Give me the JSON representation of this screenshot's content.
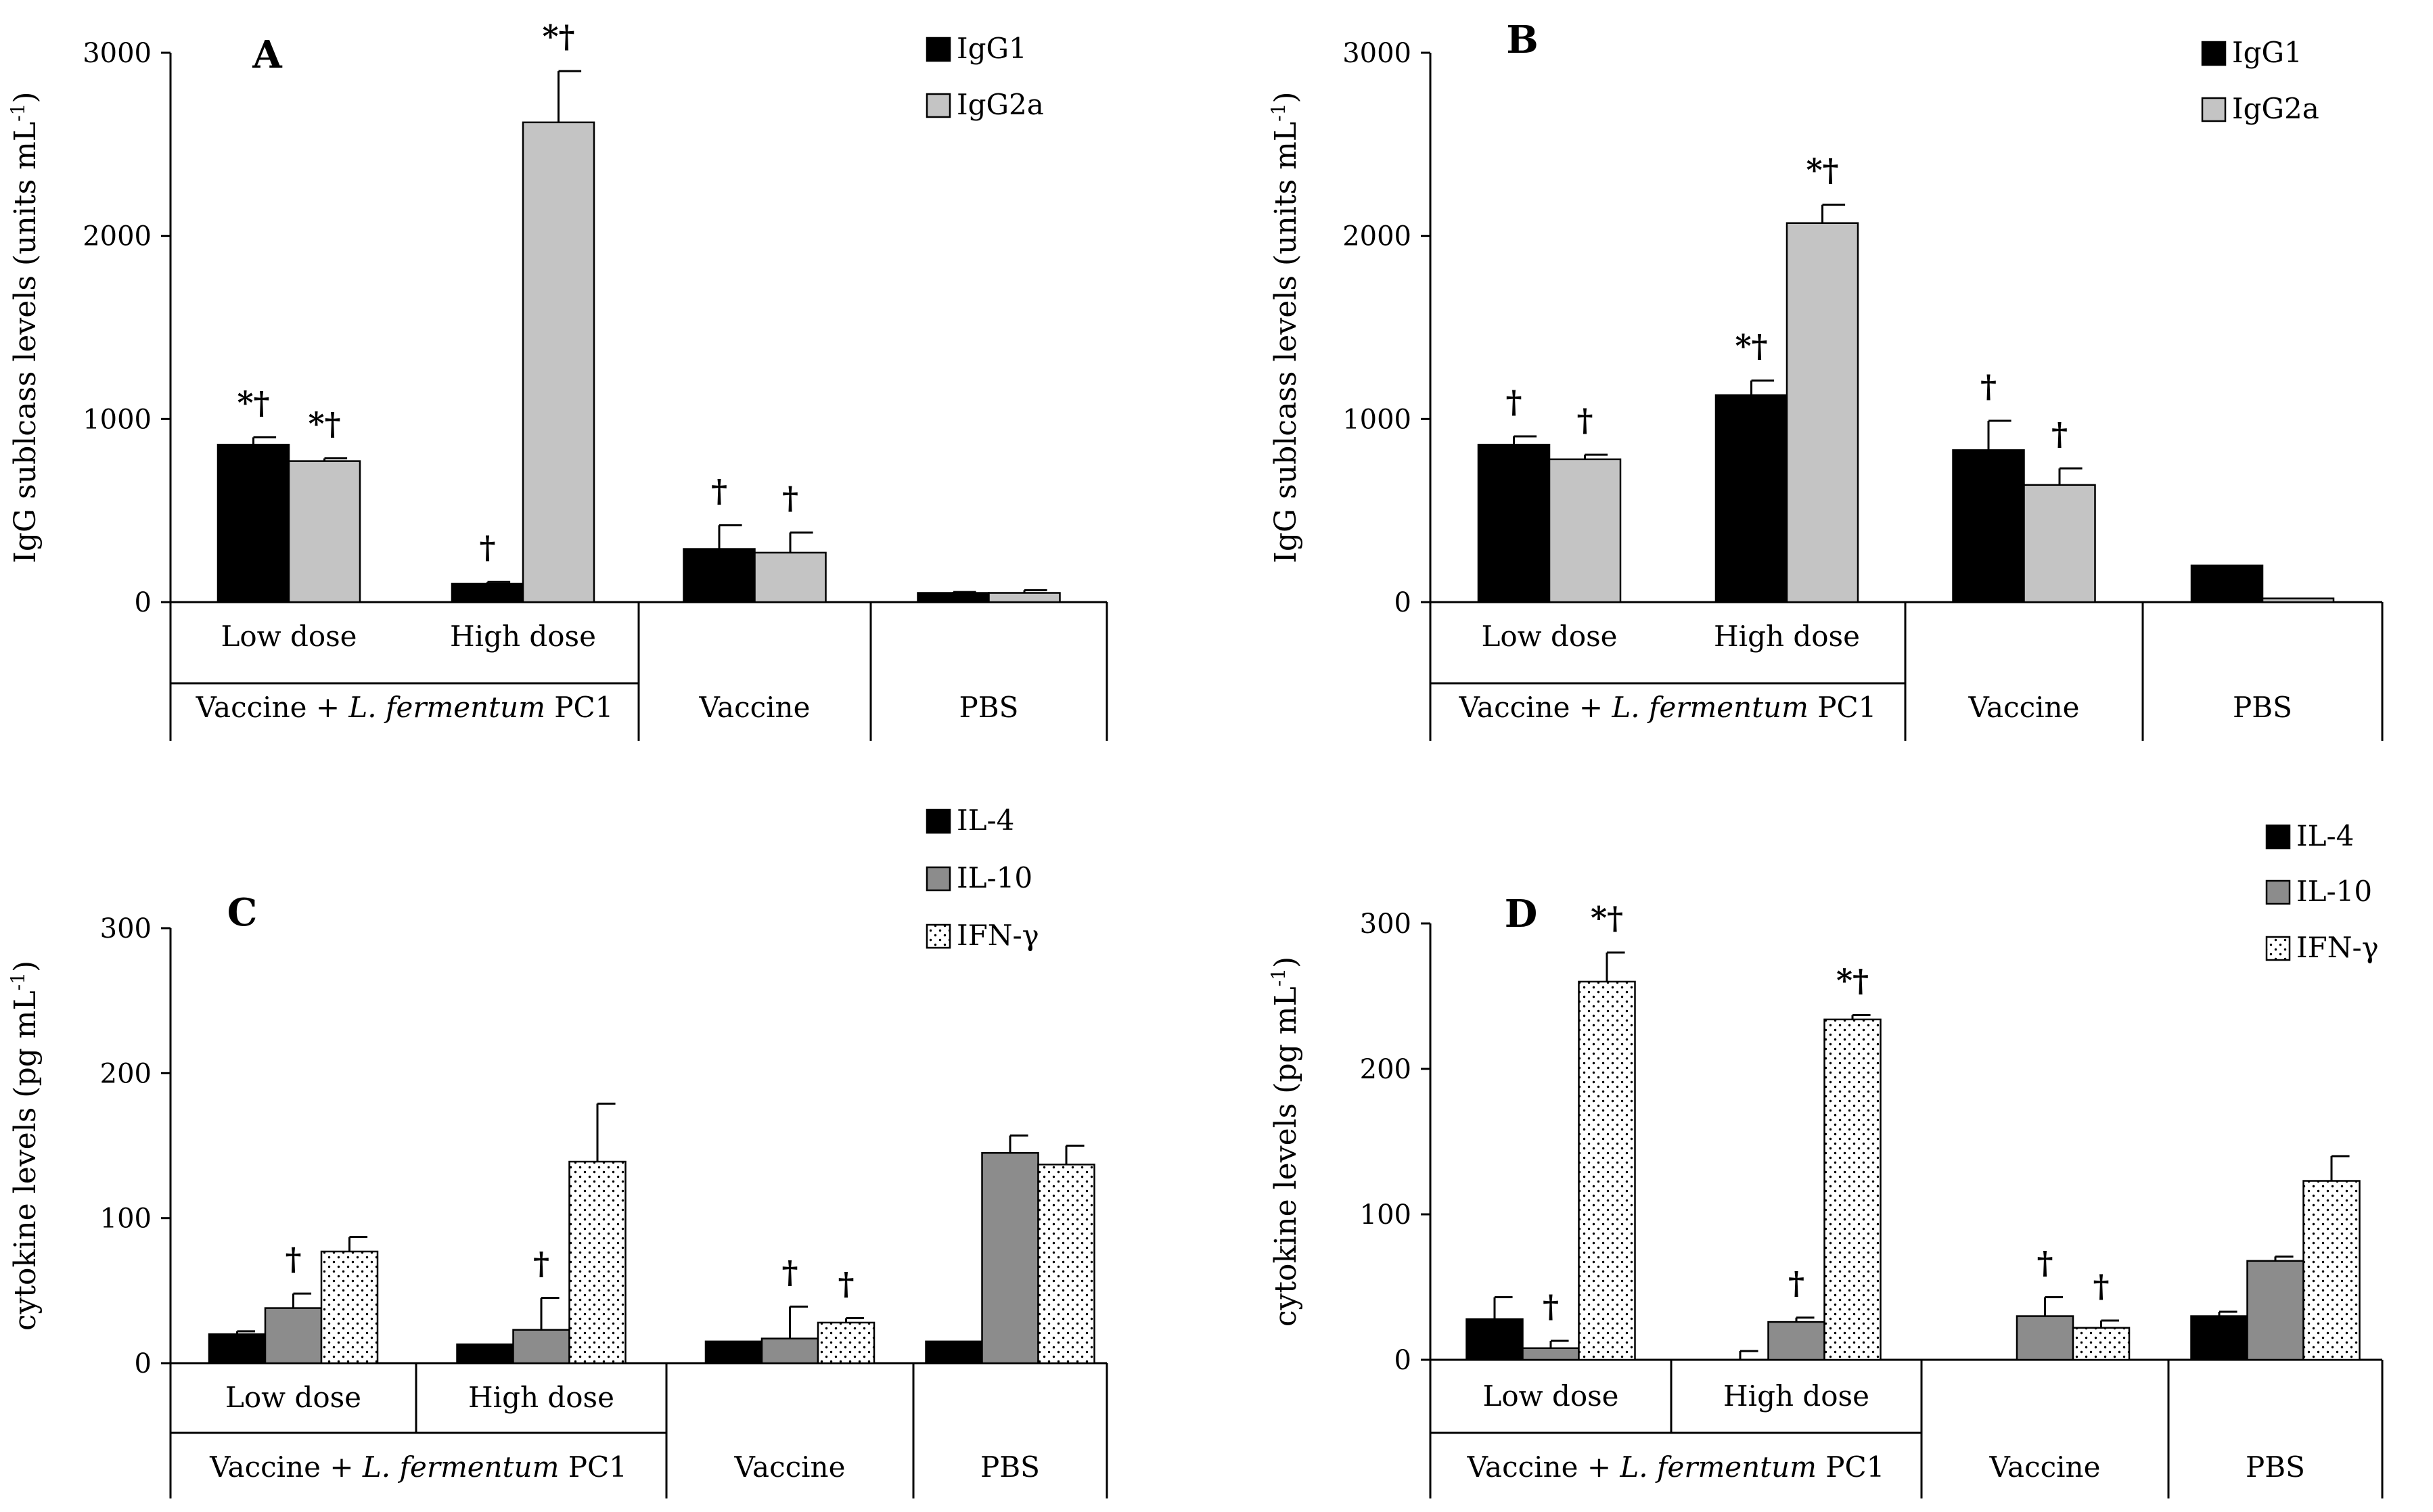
{
  "colors": {
    "IgG1": "#000000",
    "IgG2a": "#c4c4c4",
    "IL-4": "#000000",
    "IL-10": "#8c8c8c",
    "IFN-γ": "dots"
  },
  "chart_data": [
    {
      "panel": "A",
      "type": "bar",
      "ylabel": "IgG sublcass levels (units mL",
      "ylabel_sup": "-1",
      "ylabel_end": ")",
      "ylim": [
        0,
        3000
      ],
      "yticks": [
        "0",
        "1000",
        "2000",
        "3000"
      ],
      "categories": [
        "Low dose",
        "High dose",
        "Vaccine",
        "PBS"
      ],
      "group_label": {
        "prefix": "Vaccine + ",
        "italic": "L. fermentum",
        "suffix": " PC1"
      },
      "group_labels_lower": [
        "Vaccine",
        "PBS"
      ],
      "series": [
        {
          "name": "IgG1",
          "values": [
            860,
            100,
            290,
            50
          ],
          "errors": [
            40,
            10,
            130,
            5
          ],
          "annotations": [
            "*†",
            "†",
            "†",
            ""
          ]
        },
        {
          "name": "IgG2a",
          "values": [
            770,
            2620,
            270,
            50
          ],
          "errors": [
            15,
            280,
            110,
            15
          ],
          "annotations": [
            "*†",
            "*†",
            "†",
            ""
          ]
        }
      ]
    },
    {
      "panel": "B",
      "type": "bar",
      "ylabel": "IgG sublcass levels (units  mL",
      "ylabel_sup": "-1",
      "ylabel_end": ")",
      "ylim": [
        0,
        3000
      ],
      "yticks": [
        "0",
        "1000",
        "2000",
        "3000"
      ],
      "categories": [
        "Low dose",
        "High dose",
        "Vaccine",
        "PBS"
      ],
      "group_label": {
        "prefix": "Vaccine + ",
        "italic": "L. fermentum",
        "suffix": " PC1"
      },
      "group_labels_lower": [
        "Vaccine",
        "PBS"
      ],
      "series": [
        {
          "name": "IgG1",
          "values": [
            860,
            1130,
            830,
            200
          ],
          "errors": [
            45,
            80,
            160,
            0
          ],
          "annotations": [
            "†",
            "*†",
            "†",
            ""
          ]
        },
        {
          "name": "IgG2a",
          "values": [
            780,
            2070,
            640,
            20
          ],
          "errors": [
            25,
            100,
            90,
            0
          ],
          "annotations": [
            "†",
            "*†",
            "†",
            ""
          ]
        }
      ]
    },
    {
      "panel": "C",
      "type": "bar",
      "ylabel": "cytokine levels (pg  mL",
      "ylabel_sup": "-1",
      "ylabel_end": ")",
      "ylim": [
        0,
        300
      ],
      "yticks": [
        "0",
        "100",
        "200",
        "300"
      ],
      "categories": [
        "Low dose",
        "High dose",
        "Vaccine",
        "PBS"
      ],
      "group_label": {
        "prefix": "Vaccine + ",
        "italic": "L. fermentum",
        "suffix": " PC1"
      },
      "group_labels_lower": [
        "Vaccine",
        "PBS"
      ],
      "series": [
        {
          "name": "IL-4",
          "values": [
            20,
            13,
            15,
            15
          ],
          "errors": [
            2,
            0,
            0,
            0
          ],
          "annotations": [
            "",
            "",
            "",
            ""
          ]
        },
        {
          "name": "IL-10",
          "values": [
            38,
            23,
            17,
            145
          ],
          "errors": [
            10,
            22,
            22,
            12
          ],
          "annotations": [
            "†",
            "†",
            "†",
            ""
          ]
        },
        {
          "name": "IFN-γ",
          "values": [
            77,
            139,
            28,
            137
          ],
          "errors": [
            10,
            40,
            3,
            13
          ],
          "annotations": [
            "",
            "",
            "†",
            ""
          ]
        }
      ]
    },
    {
      "panel": "D",
      "type": "bar",
      "ylabel": "cytokine levels (pg  mL",
      "ylabel_sup": "-1",
      "ylabel_end": ")",
      "ylim": [
        0,
        300
      ],
      "yticks": [
        "0",
        "100",
        "200",
        "300"
      ],
      "categories": [
        "Low dose",
        "High dose",
        "Vaccine",
        "PBS"
      ],
      "group_label": {
        "prefix": "Vaccine + ",
        "italic": "L. fermentum",
        "suffix": " PC1"
      },
      "group_labels_lower": [
        "Vaccine",
        "PBS"
      ],
      "series": [
        {
          "name": "IL-4",
          "values": [
            28,
            0,
            0,
            30
          ],
          "errors": [
            15,
            6,
            0,
            3
          ],
          "annotations": [
            "",
            "",
            "",
            ""
          ]
        },
        {
          "name": "IL-10",
          "values": [
            8,
            26,
            30,
            68
          ],
          "errors": [
            5,
            3,
            13,
            3
          ],
          "annotations": [
            "†",
            "†",
            "†",
            ""
          ]
        },
        {
          "name": "IFN-γ",
          "values": [
            260,
            234,
            22,
            123
          ],
          "errors": [
            20,
            3,
            5,
            17
          ],
          "annotations": [
            "*†",
            "*†",
            "†",
            ""
          ]
        }
      ]
    }
  ]
}
